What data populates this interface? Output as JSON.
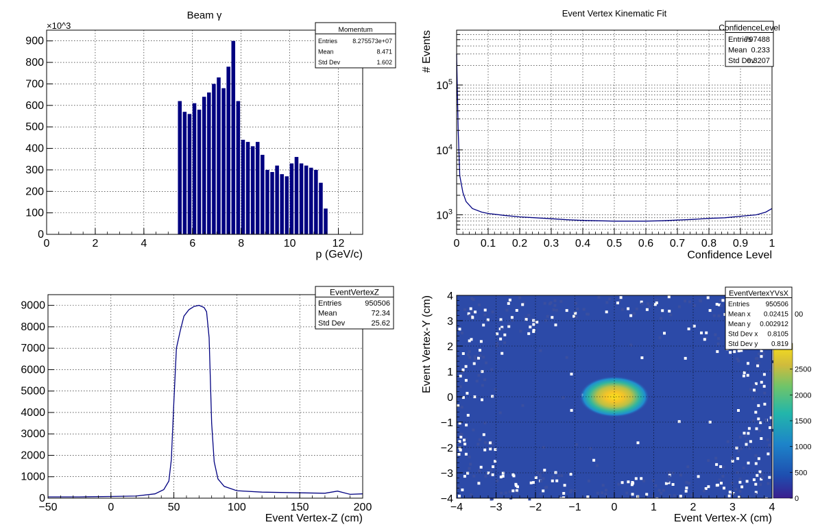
{
  "colors": {
    "hist": "#000080",
    "frame": "#000000",
    "grid": "#000000",
    "background": "#ffffff"
  },
  "chart_data": [
    {
      "id": "momentum",
      "type": "bar",
      "title": "Beam γ",
      "xlabel": "p (GeV/c)",
      "ylabel": "",
      "yexponent": "×10^3",
      "xlim": [
        0,
        13
      ],
      "ylim": [
        0,
        950
      ],
      "xticks": [
        0,
        2,
        4,
        6,
        8,
        10,
        12
      ],
      "yticks": [
        0,
        100,
        200,
        300,
        400,
        500,
        600,
        700,
        800,
        900
      ],
      "grid": true,
      "stats": {
        "name": "Momentum",
        "rows": [
          [
            "Entries",
            "8.275573e+07"
          ],
          [
            "Mean",
            "8.471"
          ],
          [
            "Std Dev",
            "1.602"
          ]
        ]
      },
      "x": [
        5.4,
        5.6,
        5.8,
        6.0,
        6.2,
        6.4,
        6.6,
        6.8,
        7.0,
        7.2,
        7.4,
        7.6,
        7.8,
        8.0,
        8.2,
        8.4,
        8.6,
        8.8,
        9.0,
        9.2,
        9.4,
        9.6,
        9.8,
        10.0,
        10.2,
        10.4,
        10.6,
        10.8,
        11.0,
        11.2,
        11.4
      ],
      "values": [
        620,
        570,
        560,
        610,
        580,
        640,
        660,
        700,
        730,
        680,
        780,
        900,
        620,
        440,
        430,
        410,
        430,
        370,
        300,
        290,
        320,
        280,
        270,
        330,
        360,
        330,
        320,
        310,
        300,
        240,
        120
      ]
    },
    {
      "id": "confidence",
      "type": "line",
      "title": "Event Vertex Kinematic Fit",
      "xlabel": "Confidence Level",
      "ylabel": "# Events",
      "scale_y": "log",
      "xlim": [
        0,
        1
      ],
      "ylim": [
        500,
        700000
      ],
      "xticks": [
        0,
        0.1,
        0.2,
        0.3,
        0.4,
        0.5,
        0.6,
        0.7,
        0.8,
        0.9,
        1
      ],
      "yticks": [
        "10^3",
        "10^4",
        "10^5"
      ],
      "grid": true,
      "stats": {
        "name": "ConfidenceLevel",
        "rows": [
          [
            "Entries",
            "797488"
          ],
          [
            "Mean",
            "0.233"
          ],
          [
            "Std Dev",
            "0.3207"
          ]
        ]
      },
      "x": [
        0.0,
        0.005,
        0.01,
        0.02,
        0.03,
        0.05,
        0.08,
        0.1,
        0.15,
        0.2,
        0.25,
        0.3,
        0.35,
        0.4,
        0.45,
        0.5,
        0.55,
        0.6,
        0.65,
        0.7,
        0.75,
        0.8,
        0.85,
        0.9,
        0.95,
        0.98,
        1.0
      ],
      "values": [
        300000,
        20000,
        4000,
        2200,
        1600,
        1250,
        1100,
        1050,
        980,
        930,
        900,
        870,
        840,
        820,
        810,
        800,
        800,
        800,
        810,
        830,
        850,
        880,
        900,
        950,
        1000,
        1100,
        1250
      ]
    },
    {
      "id": "vertexz",
      "type": "line",
      "title": "",
      "xlabel": "Event Vertex-Z (cm)",
      "ylabel": "",
      "xlim": [
        -50,
        200
      ],
      "ylim": [
        0,
        9500
      ],
      "xticks": [
        -50,
        0,
        50,
        100,
        150,
        200
      ],
      "yticks": [
        0,
        1000,
        2000,
        3000,
        4000,
        5000,
        6000,
        7000,
        8000,
        9000
      ],
      "grid": true,
      "stats": {
        "name": "EventVertexZ",
        "rows": [
          [
            "Entries",
            "950506"
          ],
          [
            "Mean",
            "72.34"
          ],
          [
            "Std Dev",
            "25.62"
          ]
        ]
      },
      "x": [
        -50,
        -25,
        0,
        20,
        35,
        42,
        46,
        48,
        50,
        52,
        55,
        58,
        62,
        66,
        70,
        74,
        76,
        78,
        80,
        82,
        85,
        90,
        100,
        120,
        150,
        170,
        180,
        190,
        200
      ],
      "values": [
        60,
        60,
        80,
        100,
        200,
        400,
        800,
        1800,
        4500,
        7000,
        7800,
        8500,
        8800,
        8950,
        9000,
        8900,
        8700,
        7500,
        3500,
        1700,
        900,
        550,
        350,
        280,
        250,
        230,
        330,
        180,
        200
      ]
    },
    {
      "id": "vertexyx",
      "type": "heatmap",
      "title": "",
      "xlabel": "Event Vertex-X (cm)",
      "ylabel": "Event Vertex-Y (cm)",
      "xlim": [
        -4,
        4
      ],
      "ylim": [
        -4,
        4
      ],
      "xticks": [
        -4,
        -3,
        -2,
        -1,
        0,
        1,
        2,
        3,
        4
      ],
      "yticks": [
        -4,
        -3,
        -2,
        -1,
        0,
        1,
        2,
        3,
        4
      ],
      "grid": true,
      "stats": {
        "name": "EventVertexYVsX",
        "rows": [
          [
            "Entries",
            "950506"
          ],
          [
            "Mean x",
            "0.02415"
          ],
          [
            "Mean y",
            "0.002912"
          ],
          [
            "Std Dev x",
            "0.8105"
          ],
          [
            "Std Dev y",
            "0.819"
          ]
        ]
      },
      "peak": {
        "x": 0.0,
        "y": 0.0,
        "sigma_x": 0.33,
        "sigma_y": 0.3,
        "max": 2900
      },
      "colorbar": {
        "min": 0,
        "max": 3000,
        "ticks": [
          0,
          500,
          1000,
          1500,
          2000,
          2500
        ],
        "partial_label": "00"
      }
    }
  ]
}
